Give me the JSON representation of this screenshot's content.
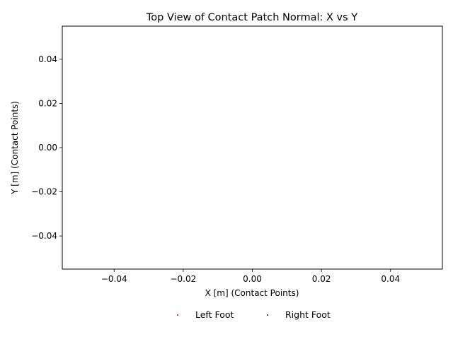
{
  "chart_data": {
    "type": "scatter",
    "title": "Top View of Contact Patch Normal: X vs Y",
    "xlabel": "X [m] (Contact Points)",
    "ylabel": "Y [m] (Contact Points)",
    "xlim": [
      -0.055,
      0.055
    ],
    "ylim": [
      -0.055,
      0.055
    ],
    "x_ticks": [
      -0.04,
      -0.02,
      0.0,
      0.02,
      0.04
    ],
    "x_tick_labels": [
      "−0.04",
      "−0.02",
      "0.00",
      "0.02",
      "0.04"
    ],
    "y_ticks": [
      -0.04,
      -0.02,
      0.0,
      0.02,
      0.04
    ],
    "y_tick_labels": [
      "−0.04",
      "−0.02",
      "0.00",
      "0.02",
      "0.04"
    ],
    "grid": false,
    "legend_placement": "bottom-center",
    "series": [
      {
        "name": "Left Foot",
        "color": "#ff0000",
        "points": []
      },
      {
        "name": "Right Foot",
        "color": "#0000ff",
        "points": []
      }
    ]
  }
}
